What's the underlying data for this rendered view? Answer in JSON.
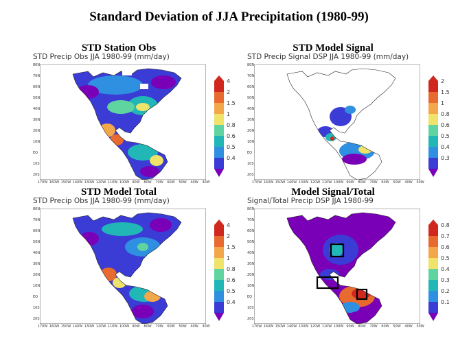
{
  "title": "Standard Deviation of JJA Precipitation (1980-99)",
  "colors": {
    "scale": [
      "#7a00b8",
      "#3b3bd6",
      "#2f8fe0",
      "#22b7b7",
      "#5fd4a0",
      "#efe36a",
      "#f4a64b",
      "#e86a2e",
      "#d0281e"
    ]
  },
  "latitude_labels": [
    "80N",
    "70N",
    "60N",
    "50N",
    "40N",
    "30N",
    "20N",
    "10N",
    "EQ",
    "10S",
    "20S"
  ],
  "longitude_labels": [
    "170W",
    "160W",
    "150W",
    "140W",
    "130W",
    "120W",
    "110W",
    "100W",
    "90W",
    "80W",
    "70W",
    "60W",
    "50W",
    "40W",
    "30W"
  ],
  "panels": [
    {
      "title": "STD Station Obs",
      "header": "STD Precip Obs JJA 1980-99 (mm/day)",
      "colorbar": [
        "4",
        "2",
        "1.5",
        "1",
        "0.8",
        "0.6",
        "0.5",
        "0.4"
      ]
    },
    {
      "title": "STD Model Signal",
      "header": "STD Precip Signal DSP JJA 1980-99 (mm/day)",
      "colorbar": [
        "2",
        "1.5",
        "1",
        "0.8",
        "0.6",
        "0.5",
        "0.4",
        "0.3"
      ]
    },
    {
      "title": "STD Model Total",
      "header": "STD Precip Obs JJA 1980-99 (mm/day)",
      "colorbar": [
        "4",
        "2",
        "1.5",
        "1",
        "0.8",
        "0.6",
        "0.5",
        "0.4"
      ]
    },
    {
      "title": "Model Signal/Total",
      "header": "Signal/Total Precip DSP JJA 1980-99",
      "colorbar": [
        "0.8",
        "0.7",
        "0.6",
        "0.5",
        "0.4",
        "0.3",
        "0.2",
        "0.1"
      ]
    }
  ]
}
